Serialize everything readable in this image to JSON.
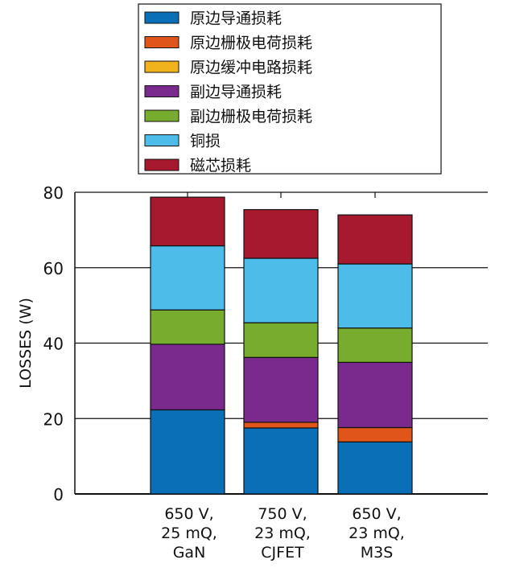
{
  "chart_data": {
    "type": "bar",
    "stacked": true,
    "title": "",
    "xlabel": "",
    "ylabel": "LOSSES (W)",
    "ylim": [
      0,
      80
    ],
    "yticks": [
      0,
      20,
      40,
      60,
      80
    ],
    "grid": true,
    "legend_position": "top",
    "categories": [
      [
        "650 V,",
        "25 mQ,",
        "GaN"
      ],
      [
        "750 V,",
        "23 mQ,",
        "CJFET"
      ],
      [
        "650 V,",
        "23 mQ,",
        "M3S"
      ]
    ],
    "series": [
      {
        "name": "原边导通损耗",
        "color": "#0a6fb7",
        "values": [
          22.3,
          17.5,
          13.8
        ]
      },
      {
        "name": "原边栅极电荷损耗",
        "color": "#e0561a",
        "values": [
          0.0,
          1.5,
          3.8
        ]
      },
      {
        "name": "原边缓冲电路损耗",
        "color": "#f0b21d",
        "values": [
          0.0,
          0.0,
          0.0
        ]
      },
      {
        "name": "副边导通损耗",
        "color": "#7a2a8c",
        "values": [
          17.4,
          17.2,
          17.3
        ]
      },
      {
        "name": "副边栅极电荷损耗",
        "color": "#77ac2f",
        "values": [
          9.1,
          9.2,
          9.1
        ]
      },
      {
        "name": "铜损",
        "color": "#4dbce9",
        "values": [
          17.0,
          17.1,
          17.0
        ]
      },
      {
        "name": "磁芯损耗",
        "color": "#a6192e",
        "values": [
          12.9,
          12.9,
          13.0
        ]
      }
    ]
  }
}
